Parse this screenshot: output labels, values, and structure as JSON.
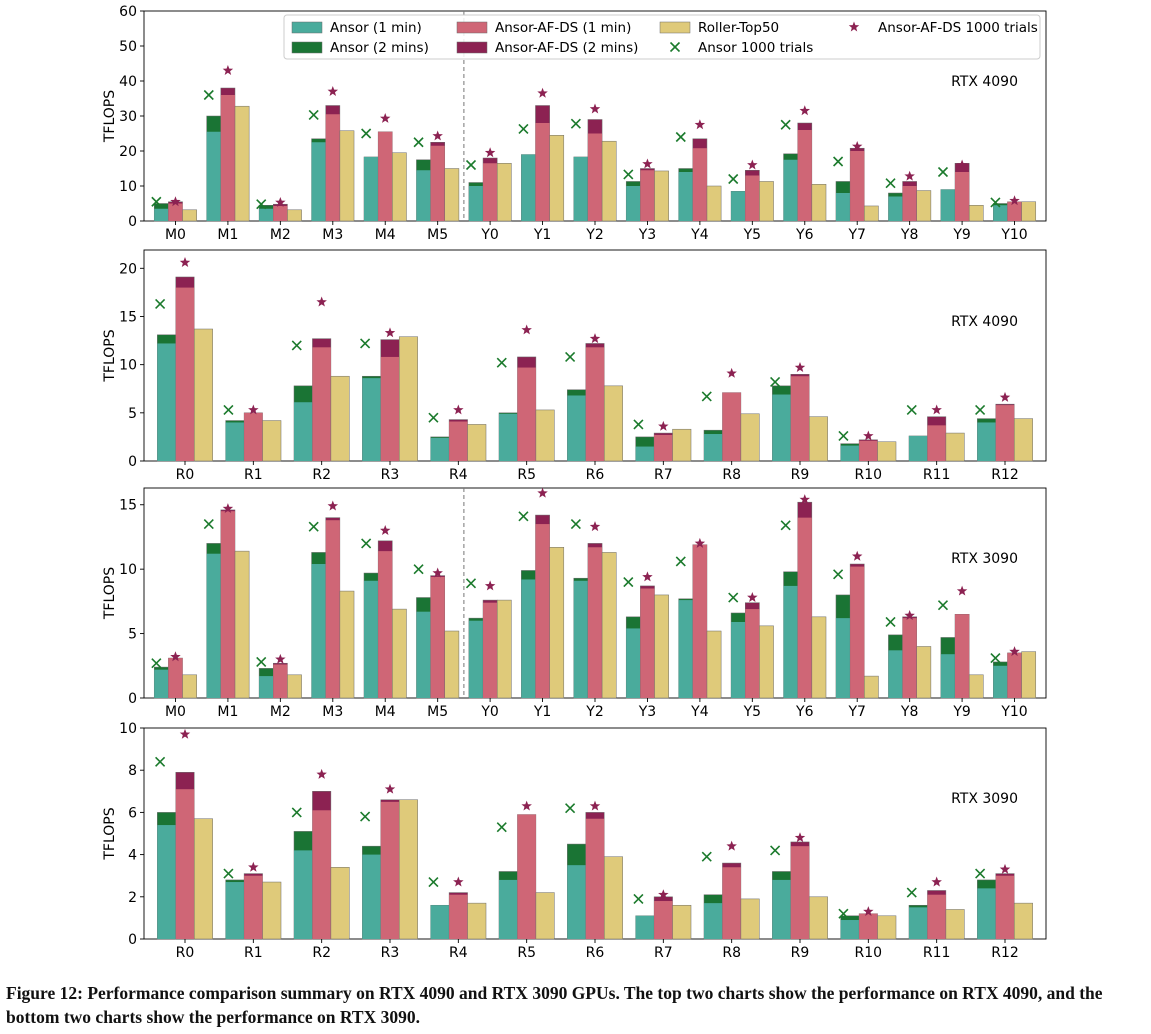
{
  "caption": "Figure 12: Performance comparison summary on RTX 4090 and RTX 3090 GPUs. The top two charts show the performance on RTX 4090, and the bottom two charts show the performance on RTX 3090.",
  "colors": {
    "ansor1": "#4aab9c",
    "ansor2": "#1a7434",
    "af1": "#cf6676",
    "af2": "#8c2252",
    "roller": "#dfca7a",
    "ansorTrial": "#1b7a2c",
    "afTrial": "#8c2252"
  },
  "legend": {
    "ansor1": "Ansor (1 min)",
    "ansor2": "Ansor (2 mins)",
    "af1": "Ansor-AF-DS (1 min)",
    "af2": "Ansor-AF-DS (2 mins)",
    "roller": "Roller-Top50",
    "ansorTrial": "Ansor 1000 trials",
    "afTrial": "Ansor-AF-DS 1000 trials"
  },
  "chart_data": [
    {
      "type": "bar",
      "gpu": "RTX 4090",
      "ylabel": "TFLOPS",
      "ylim": [
        0,
        60
      ],
      "yticks": [
        0,
        10,
        20,
        30,
        40,
        50,
        60
      ],
      "divider_after": "M5",
      "legend_position": "top",
      "categories": [
        "M0",
        "M1",
        "M2",
        "M3",
        "M4",
        "M5",
        "Y0",
        "Y1",
        "Y2",
        "Y3",
        "Y4",
        "Y5",
        "Y6",
        "Y7",
        "Y8",
        "Y9",
        "Y10"
      ],
      "series": [
        {
          "name": "Ansor (1 min)",
          "values": [
            3.5,
            25.5,
            3.5,
            22.5,
            18.3,
            14.5,
            10.0,
            19.0,
            18.3,
            10.0,
            14.0,
            8.5,
            17.5,
            8.0,
            7.0,
            9.0,
            4.5
          ]
        },
        {
          "name": "Ansor (2 mins)",
          "values": [
            5.0,
            30.0,
            4.5,
            23.5,
            18.3,
            17.5,
            11.0,
            19.0,
            18.3,
            11.3,
            15.0,
            8.5,
            19.2,
            11.3,
            8.0,
            9.0,
            5.0
          ]
        },
        {
          "name": "Ansor-AF-DS (1 min)",
          "values": [
            5.0,
            36.0,
            4.3,
            30.5,
            25.5,
            21.5,
            16.5,
            28.0,
            25.0,
            14.5,
            20.8,
            13.0,
            26.0,
            20.0,
            10.0,
            14.0,
            5.5
          ]
        },
        {
          "name": "Ansor-AF-DS (2 mins)",
          "values": [
            5.5,
            38.0,
            4.8,
            33.0,
            25.5,
            22.5,
            18.0,
            33.0,
            29.0,
            15.0,
            23.5,
            14.5,
            28.0,
            20.8,
            11.3,
            16.5,
            5.5
          ]
        },
        {
          "name": "Roller-Top50",
          "values": [
            3.2,
            32.8,
            3.2,
            25.8,
            19.5,
            15.0,
            16.5,
            24.5,
            22.8,
            14.3,
            10.0,
            11.3,
            10.5,
            4.3,
            8.7,
            4.5,
            5.5
          ]
        },
        {
          "name": "Ansor 1000 trials",
          "values": [
            5.5,
            36.0,
            4.8,
            30.3,
            25.0,
            22.5,
            16.0,
            26.3,
            27.8,
            13.3,
            24.0,
            12.0,
            27.5,
            17.0,
            10.8,
            14.0,
            5.3
          ]
        },
        {
          "name": "Ansor-AF-DS 1000 trials",
          "values": [
            5.5,
            43.0,
            5.3,
            37.0,
            29.3,
            24.3,
            19.5,
            36.5,
            32.0,
            16.3,
            27.5,
            16.0,
            31.5,
            21.3,
            12.8,
            16.0,
            5.8
          ]
        }
      ]
    },
    {
      "type": "bar",
      "gpu": "RTX 4090",
      "ylabel": "TFLOPS",
      "ylim": [
        0,
        21.9
      ],
      "yticks": [
        0,
        5,
        10,
        15,
        20
      ],
      "categories": [
        "R0",
        "R1",
        "R2",
        "R3",
        "R4",
        "R5",
        "R6",
        "R7",
        "R8",
        "R9",
        "R10",
        "R11",
        "R12"
      ],
      "series": [
        {
          "name": "Ansor (1 min)",
          "values": [
            12.2,
            4.0,
            6.1,
            8.6,
            2.4,
            4.9,
            6.8,
            1.5,
            2.8,
            6.9,
            1.6,
            2.6,
            4.0
          ]
        },
        {
          "name": "Ansor (2 mins)",
          "values": [
            13.1,
            4.2,
            7.8,
            8.8,
            2.5,
            5.0,
            7.4,
            2.5,
            3.2,
            7.8,
            1.8,
            2.6,
            4.4
          ]
        },
        {
          "name": "Ansor-AF-DS (1 min)",
          "values": [
            18.0,
            5.0,
            11.8,
            10.8,
            4.1,
            9.7,
            11.8,
            2.7,
            7.1,
            8.8,
            2.1,
            3.7,
            5.8
          ]
        },
        {
          "name": "Ansor-AF-DS (2 mins)",
          "values": [
            19.1,
            5.0,
            12.7,
            12.6,
            4.3,
            10.8,
            12.2,
            2.9,
            7.1,
            9.0,
            2.2,
            4.6,
            5.9
          ]
        },
        {
          "name": "Roller-Top50",
          "values": [
            13.7,
            4.2,
            8.8,
            12.9,
            3.8,
            5.3,
            7.8,
            3.3,
            4.9,
            4.6,
            2.0,
            2.9,
            4.4
          ]
        },
        {
          "name": "Ansor 1000 trials",
          "values": [
            16.3,
            5.3,
            12.0,
            12.2,
            4.5,
            10.2,
            10.8,
            3.8,
            6.7,
            8.2,
            2.6,
            5.3,
            5.3
          ]
        },
        {
          "name": "Ansor-AF-DS 1000 trials",
          "values": [
            20.6,
            5.3,
            16.5,
            13.3,
            5.3,
            13.6,
            12.7,
            3.6,
            9.1,
            9.7,
            2.6,
            5.3,
            6.6
          ]
        }
      ]
    },
    {
      "type": "bar",
      "gpu": "RTX 3090",
      "ylabel": "TFLOPS",
      "ylim": [
        0,
        16.3
      ],
      "yticks": [
        0,
        5,
        10,
        15
      ],
      "divider_after": "M5",
      "categories": [
        "M0",
        "M1",
        "M2",
        "M3",
        "M4",
        "M5",
        "Y0",
        "Y1",
        "Y2",
        "Y3",
        "Y4",
        "Y5",
        "Y6",
        "Y7",
        "Y8",
        "Y9",
        "Y10"
      ],
      "series": [
        {
          "name": "Ansor (1 min)",
          "values": [
            2.2,
            11.2,
            1.7,
            10.4,
            9.1,
            6.7,
            6.0,
            9.2,
            9.1,
            5.4,
            7.6,
            5.9,
            8.7,
            6.2,
            3.7,
            3.4,
            2.5
          ]
        },
        {
          "name": "Ansor (2 mins)",
          "values": [
            2.4,
            12.0,
            2.3,
            11.3,
            9.7,
            7.8,
            6.2,
            9.9,
            9.3,
            6.3,
            7.7,
            6.6,
            9.8,
            8.0,
            4.9,
            4.7,
            2.8
          ]
        },
        {
          "name": "Ansor-AF-DS (1 min)",
          "values": [
            3.1,
            14.5,
            2.6,
            13.8,
            11.4,
            9.4,
            7.4,
            13.5,
            11.7,
            8.5,
            11.9,
            6.9,
            14.0,
            10.2,
            6.2,
            6.5,
            3.5
          ]
        },
        {
          "name": "Ansor-AF-DS (2 mins)",
          "values": [
            3.1,
            14.6,
            2.7,
            14.0,
            12.2,
            9.5,
            7.6,
            14.2,
            12.0,
            8.7,
            11.9,
            7.4,
            15.2,
            10.4,
            6.3,
            6.5,
            3.5
          ]
        },
        {
          "name": "Roller-Top50",
          "values": [
            1.8,
            11.4,
            1.8,
            8.3,
            6.9,
            5.2,
            7.6,
            11.7,
            11.3,
            8.0,
            5.2,
            5.6,
            6.3,
            1.7,
            4.0,
            1.8,
            3.6
          ]
        },
        {
          "name": "Ansor 1000 trials",
          "values": [
            2.7,
            13.5,
            2.8,
            13.3,
            12.0,
            10.0,
            8.9,
            14.1,
            13.5,
            9.0,
            10.6,
            7.8,
            13.4,
            9.6,
            5.9,
            7.2,
            3.1
          ]
        },
        {
          "name": "Ansor-AF-DS 1000 trials",
          "values": [
            3.2,
            14.7,
            3.0,
            14.9,
            13.0,
            9.7,
            8.7,
            15.9,
            13.3,
            9.4,
            12.0,
            7.8,
            15.4,
            11.0,
            6.4,
            8.3,
            3.6
          ]
        }
      ]
    },
    {
      "type": "bar",
      "gpu": "RTX 3090",
      "ylabel": "TFLOPS",
      "ylim": [
        0,
        10
      ],
      "yticks": [
        0,
        2,
        4,
        6,
        8,
        10
      ],
      "categories": [
        "R0",
        "R1",
        "R2",
        "R3",
        "R4",
        "R5",
        "R6",
        "R7",
        "R8",
        "R9",
        "R10",
        "R11",
        "R12"
      ],
      "series": [
        {
          "name": "Ansor (1 min)",
          "values": [
            5.4,
            2.7,
            4.2,
            4.0,
            1.6,
            2.8,
            3.5,
            1.1,
            1.7,
            2.8,
            0.9,
            1.5,
            2.4
          ]
        },
        {
          "name": "Ansor (2 mins)",
          "values": [
            6.0,
            2.8,
            5.1,
            4.4,
            1.6,
            3.2,
            4.5,
            1.1,
            2.1,
            3.2,
            1.1,
            1.6,
            2.8
          ]
        },
        {
          "name": "Ansor-AF-DS (1 min)",
          "values": [
            7.1,
            3.0,
            6.1,
            6.5,
            2.1,
            5.9,
            5.7,
            1.8,
            3.4,
            4.4,
            1.2,
            2.1,
            3.0
          ]
        },
        {
          "name": "Ansor-AF-DS (2 mins)",
          "values": [
            7.9,
            3.1,
            7.0,
            6.6,
            2.2,
            5.9,
            6.0,
            2.0,
            3.6,
            4.6,
            1.2,
            2.3,
            3.1
          ]
        },
        {
          "name": "Roller-Top50",
          "values": [
            5.7,
            2.7,
            3.4,
            6.6,
            1.7,
            2.2,
            3.9,
            1.6,
            1.9,
            2.0,
            1.1,
            1.4,
            1.7
          ]
        },
        {
          "name": "Ansor 1000 trials",
          "values": [
            8.4,
            3.1,
            6.0,
            5.8,
            2.7,
            5.3,
            6.2,
            1.9,
            3.9,
            4.2,
            1.2,
            2.2,
            3.1
          ]
        },
        {
          "name": "Ansor-AF-DS 1000 trials",
          "values": [
            9.7,
            3.4,
            7.8,
            7.1,
            2.7,
            6.3,
            6.3,
            2.1,
            4.4,
            4.8,
            1.3,
            2.7,
            3.3
          ]
        }
      ]
    }
  ]
}
